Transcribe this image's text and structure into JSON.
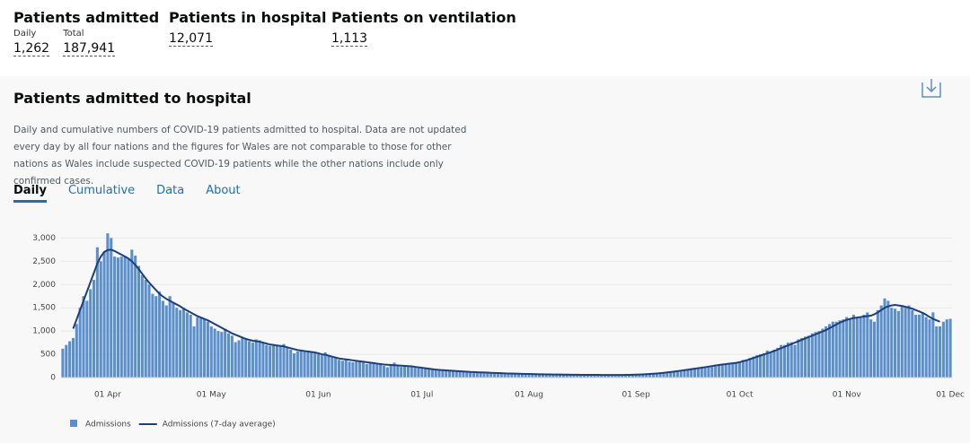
{
  "headline": {
    "admitted": {
      "title": "Patients admitted",
      "daily_label": "Daily",
      "daily": "1,262",
      "total_label": "Total",
      "total": "187,941"
    },
    "hospital": {
      "title": "Patients in hospital",
      "value": "12,071"
    },
    "ventilation": {
      "title": "Patients on ventilation",
      "value": "1,113"
    }
  },
  "card": {
    "title": "Patients admitted to hospital",
    "description": "Daily and cumulative numbers of COVID-19 patients admitted to hospital. Data are not updated every day by all four nations and the figures for Wales are not comparable to those for other nations as Wales include suspected COVID-19 patients while the other nations include only confirmed cases.",
    "tabs": [
      "Daily",
      "Cumulative",
      "Data",
      "About"
    ]
  },
  "chart_data": {
    "type": "bar-line",
    "categories": [
      null,
      null,
      null,
      null,
      null,
      null,
      null,
      null,
      null,
      null,
      null,
      null,
      null,
      "01 Apr",
      null,
      null,
      null,
      null,
      null,
      null,
      null,
      null,
      null,
      null,
      null,
      null,
      null,
      null,
      null,
      null,
      null,
      null,
      null,
      null,
      null,
      null,
      null,
      null,
      null,
      null,
      null,
      null,
      null,
      "01 May",
      null,
      null,
      null,
      null,
      null,
      null,
      null,
      null,
      null,
      null,
      null,
      null,
      null,
      null,
      null,
      null,
      null,
      null,
      null,
      null,
      null,
      null,
      null,
      null,
      null,
      null,
      null,
      null,
      null,
      null,
      "01 Jun",
      null,
      null,
      null,
      null,
      null,
      null,
      null,
      null,
      null,
      null,
      null,
      null,
      null,
      null,
      null,
      null,
      null,
      null,
      null,
      null,
      null,
      null,
      null,
      null,
      null,
      null,
      null,
      null,
      null,
      "01 Jul",
      null,
      null,
      null,
      null,
      null,
      null,
      null,
      null,
      null,
      null,
      null,
      null,
      null,
      null,
      null,
      null,
      null,
      null,
      null,
      null,
      null,
      null,
      null,
      null,
      null,
      null,
      null,
      null,
      null,
      null,
      "01 Aug",
      null,
      null,
      null,
      null,
      null,
      null,
      null,
      null,
      null,
      null,
      null,
      null,
      null,
      null,
      null,
      null,
      null,
      null,
      null,
      null,
      null,
      null,
      null,
      null,
      null,
      null,
      null,
      null,
      null,
      null,
      "01 Sep",
      null,
      null,
      null,
      null,
      null,
      null,
      null,
      null,
      null,
      null,
      null,
      null,
      null,
      null,
      null,
      null,
      null,
      null,
      null,
      null,
      null,
      null,
      null,
      null,
      null,
      null,
      null,
      null,
      null,
      "01 Oct",
      null,
      null,
      null,
      null,
      null,
      null,
      null,
      null,
      null,
      null,
      null,
      null,
      null,
      null,
      null,
      null,
      null,
      null,
      null,
      null,
      null,
      null,
      null,
      null,
      null,
      null,
      null,
      null,
      null,
      null,
      "01 Nov",
      null,
      null,
      null,
      null,
      null,
      null,
      null,
      null,
      null,
      null,
      null,
      null,
      null,
      null,
      null,
      null,
      null,
      null,
      null,
      null,
      null,
      null,
      null,
      null,
      null,
      null,
      null,
      null,
      null,
      "01 Dec"
    ],
    "series": [
      {
        "name": "Admissions",
        "color": "#5b8fcb",
        "values": [
          620,
          700,
          780,
          850,
          1150,
          1500,
          1750,
          1650,
          1900,
          2100,
          2800,
          2500,
          2700,
          3100,
          3000,
          2600,
          2580,
          2600,
          2600,
          2550,
          2750,
          2620,
          2400,
          2200,
          2100,
          2000,
          1800,
          1750,
          1850,
          1650,
          1550,
          1750,
          1600,
          1500,
          1450,
          1500,
          1400,
          1350,
          1100,
          1300,
          1300,
          1250,
          1200,
          1100,
          1050,
          1000,
          980,
          1050,
          950,
          900,
          760,
          800,
          870,
          850,
          780,
          750,
          820,
          800,
          760,
          700,
          680,
          720,
          700,
          690,
          720,
          640,
          600,
          520,
          560,
          580,
          570,
          580,
          540,
          520,
          500,
          480,
          540,
          470,
          440,
          430,
          380,
          360,
          380,
          340,
          330,
          360,
          340,
          320,
          290,
          330,
          330,
          310,
          280,
          250,
          220,
          260,
          320,
          270,
          230,
          250,
          230,
          240,
          220,
          200,
          200,
          190,
          180,
          170,
          160,
          160,
          150,
          140,
          150,
          140,
          130,
          120,
          120,
          130,
          120,
          110,
          110,
          100,
          100,
          100,
          95,
          100,
          90,
          90,
          85,
          80,
          85,
          80,
          80,
          75,
          75,
          75,
          70,
          70,
          70,
          70,
          65,
          65,
          65,
          65,
          60,
          60,
          60,
          60,
          60,
          60,
          55,
          55,
          55,
          55,
          55,
          55,
          55,
          55,
          55,
          50,
          55,
          55,
          55,
          55,
          60,
          60,
          65,
          65,
          70,
          75,
          80,
          85,
          90,
          100,
          110,
          120,
          130,
          140,
          150,
          160,
          170,
          180,
          200,
          210,
          220,
          220,
          230,
          250,
          260,
          280,
          280,
          300,
          300,
          300,
          300,
          320,
          340,
          380,
          390,
          420,
          450,
          480,
          500,
          520,
          580,
          560,
          600,
          640,
          700,
          700,
          750,
          760,
          700,
          820,
          850,
          880,
          900,
          950,
          980,
          1000,
          1050,
          1100,
          1150,
          1200,
          1200,
          1230,
          1250,
          1300,
          1250,
          1350,
          1300,
          1300,
          1350,
          1400,
          1250,
          1200,
          1450,
          1550,
          1700,
          1650,
          1500,
          1480,
          1430,
          1550,
          1500,
          1550,
          1450,
          1350,
          1350,
          1400,
          1300,
          1250,
          1400,
          1100,
          1100,
          1200,
          1250,
          1262
        ]
      },
      {
        "name": "Admissions (7-day average)",
        "color": "#1d3f7a",
        "values": [
          null,
          null,
          null,
          1050,
          1250,
          1450,
          1650,
          1850,
          2050,
          2250,
          2450,
          2600,
          2700,
          2740,
          2750,
          2720,
          2680,
          2640,
          2600,
          2560,
          2500,
          2420,
          2330,
          2230,
          2130,
          2040,
          1960,
          1880,
          1800,
          1740,
          1690,
          1650,
          1610,
          1570,
          1530,
          1480,
          1440,
          1400,
          1360,
          1320,
          1290,
          1260,
          1230,
          1190,
          1150,
          1110,
          1070,
          1030,
          990,
          950,
          920,
          890,
          860,
          830,
          810,
          790,
          780,
          770,
          750,
          730,
          710,
          700,
          690,
          680,
          670,
          650,
          630,
          610,
          590,
          580,
          570,
          560,
          550,
          540,
          520,
          500,
          490,
          470,
          450,
          430,
          410,
          400,
          390,
          380,
          370,
          360,
          350,
          340,
          330,
          320,
          310,
          300,
          290,
          280,
          275,
          270,
          265,
          260,
          255,
          250,
          245,
          240,
          230,
          220,
          210,
          200,
          190,
          180,
          170,
          165,
          160,
          155,
          150,
          145,
          140,
          135,
          130,
          125,
          120,
          117,
          114,
          111,
          108,
          105,
          102,
          99,
          96,
          93,
          90,
          88,
          86,
          84,
          82,
          80,
          78,
          76,
          74,
          72,
          70,
          69,
          68,
          67,
          66,
          65,
          64,
          63,
          62,
          61,
          60,
          60,
          59,
          59,
          58,
          58,
          57,
          57,
          56,
          56,
          56,
          55,
          55,
          55,
          56,
          57,
          58,
          60,
          62,
          65,
          68,
          72,
          76,
          81,
          87,
          94,
          102,
          110,
          119,
          128,
          138,
          148,
          158,
          168,
          179,
          190,
          201,
          212,
          223,
          235,
          247,
          259,
          270,
          280,
          290,
          298,
          306,
          315,
          330,
          350,
          370,
          395,
          420,
          445,
          470,
          495,
          520,
          545,
          570,
          600,
          630,
          660,
          690,
          720,
          750,
          780,
          810,
          840,
          870,
          900,
          930,
          960,
          990,
          1020,
          1060,
          1100,
          1140,
          1180,
          1210,
          1240,
          1260,
          1280,
          1290,
          1300,
          1310,
          1320,
          1330,
          1360,
          1400,
          1450,
          1500,
          1530,
          1550,
          1560,
          1550,
          1540,
          1520,
          1500,
          1480,
          1450,
          1420,
          1390,
          1350,
          1300,
          1260,
          1230,
          1200,
          null,
          null,
          null
        ]
      }
    ],
    "ylim": [
      0,
      3200
    ],
    "yticks": [
      0,
      500,
      {
        "value": 1000,
        "label": "1,000"
      },
      {
        "value": 1500,
        "label": "1,500"
      },
      {
        "value": 2000,
        "label": "2,000"
      },
      {
        "value": 2500,
        "label": "2,500"
      },
      {
        "value": 3000,
        "label": "3,000"
      }
    ],
    "grid": true
  }
}
